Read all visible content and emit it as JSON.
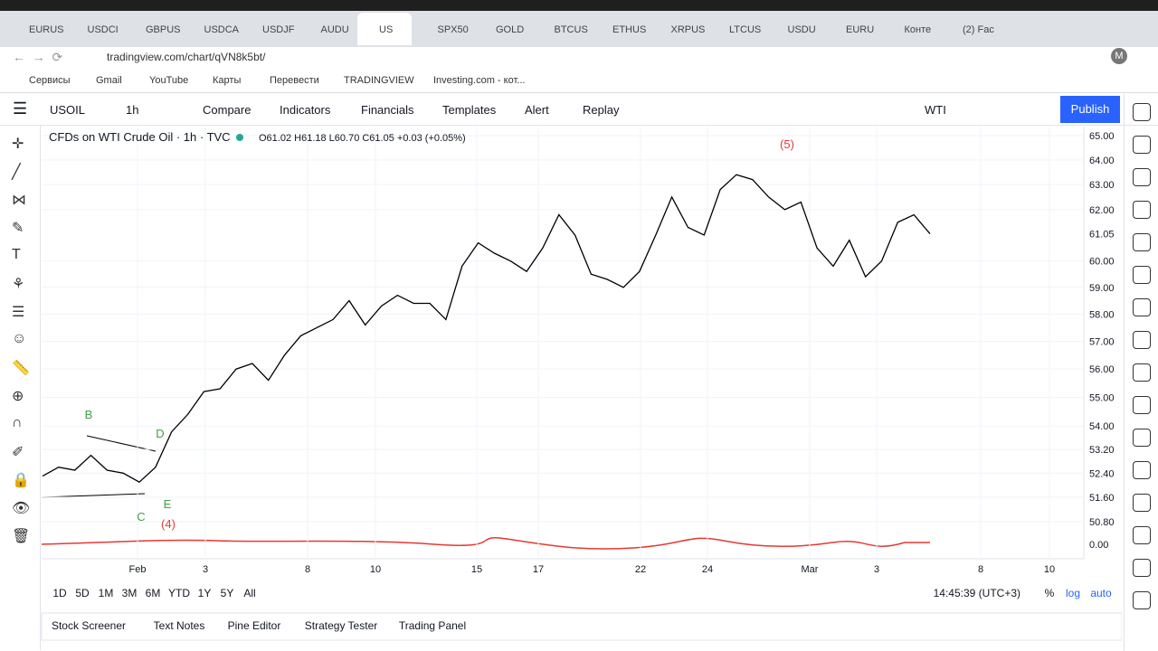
{
  "browser": {
    "tabs": [
      "EURUS",
      "USDCI",
      "GBPUS",
      "USDCA",
      "USDJF",
      "AUDU",
      "US",
      "SPX50",
      "GOLD",
      "BTCUS",
      "ETHUS",
      "XRPUS",
      "LTCUS",
      "USDU",
      "EURU",
      "Конте",
      "(2) Fac"
    ],
    "url": "tradingview.com/chart/qVN8k5bt/",
    "bookmarks": [
      "Сервисы",
      "Gmail",
      "YouTube",
      "Карты",
      "Перевести",
      "TRADINGVIEW",
      "Investing.com - кот..."
    ]
  },
  "toolbar": {
    "symbol": "USOIL",
    "interval": "1h",
    "buttons": [
      "Compare",
      "Indicators",
      "Financials",
      "Templates",
      "Alert",
      "Replay"
    ],
    "instrument": "WTI",
    "publish": "Publish"
  },
  "chart": {
    "legend": "CFDs on WTI Crude Oil · 1h · TVC",
    "ohlc": "O61.02 H61.18 L60.70 C61.05 +0.03 (+0.05%)",
    "log_scale": true,
    "ylim": [
      50.8,
      65
    ],
    "yticks": [
      {
        "value": 65,
        "label": "65.00"
      },
      {
        "value": 64,
        "label": "64.00"
      },
      {
        "value": 63,
        "label": "63.00"
      },
      {
        "value": 62,
        "label": "62.00"
      },
      {
        "value": 60,
        "label": "60.00"
      },
      {
        "value": 59,
        "label": "59.00"
      },
      {
        "value": 58,
        "label": "58.00"
      },
      {
        "value": 57,
        "label": "57.00"
      },
      {
        "value": 56,
        "label": "56.00"
      },
      {
        "value": 55,
        "label": "55.00"
      },
      {
        "value": 54,
        "label": "54.00"
      },
      {
        "value": 53.2,
        "label": "53.20"
      },
      {
        "value": 52.4,
        "label": "52.40"
      },
      {
        "value": 51.6,
        "label": "51.60"
      },
      {
        "value": 50.8,
        "label": "50.80"
      }
    ],
    "last_price": 61.05,
    "oscillator_label": "0.00",
    "xticks": [
      "Feb",
      "3",
      "8",
      "10",
      "15",
      "17",
      "22",
      "24",
      "Mar",
      "3",
      "8",
      "10"
    ],
    "annotations": [
      "B",
      "D",
      "E",
      "C",
      "(4)",
      "(5)"
    ],
    "prices": [
      52.3,
      52.6,
      52.5,
      53.0,
      52.5,
      52.4,
      52.1,
      52.6,
      53.8,
      54.4,
      55.2,
      55.3,
      56.0,
      56.2,
      55.6,
      56.5,
      57.2,
      57.5,
      57.8,
      58.5,
      57.6,
      58.3,
      58.7,
      58.4,
      58.4,
      57.8,
      59.8,
      60.7,
      60.3,
      60.0,
      59.6,
      60.5,
      61.8,
      61.0,
      59.5,
      59.3,
      59.0,
      59.6,
      61.0,
      62.5,
      61.3,
      61.0,
      62.8,
      63.4,
      63.2,
      62.5,
      62.0,
      62.3,
      60.5,
      59.8,
      60.8,
      59.4,
      60.0,
      61.5,
      61.8,
      61.05
    ]
  },
  "bottom": {
    "ranges": [
      "1D",
      "5D",
      "1M",
      "3M",
      "6M",
      "YTD",
      "1Y",
      "5Y",
      "All"
    ],
    "clock": "14:45:39 (UTC+3)",
    "scale_options": [
      "%",
      "log",
      "auto"
    ],
    "panels": [
      "Stock Screener",
      "Text Notes",
      "Pine Editor",
      "Strategy Tester",
      "Trading Panel"
    ]
  }
}
